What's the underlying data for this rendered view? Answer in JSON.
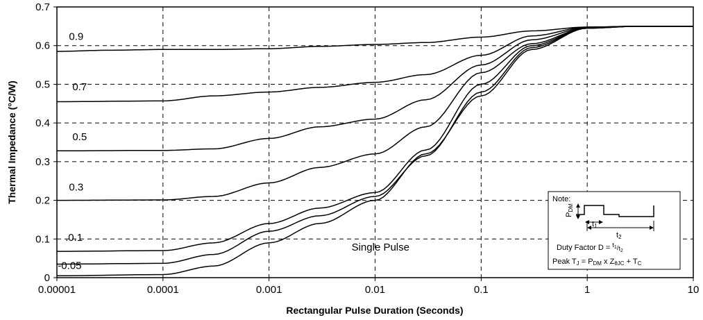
{
  "chart_data": {
    "type": "line",
    "xlabel": "Rectangular Pulse Duration (Seconds)",
    "ylabel": "Thermal Impedance (°C/W)",
    "x_scale": "log",
    "xlim": [
      1e-05,
      10
    ],
    "ylim": [
      0,
      0.7
    ],
    "x_ticks": [
      "0.00001",
      "0.0001",
      "0.001",
      "0.01",
      "0.1",
      "1",
      "10"
    ],
    "y_ticks": [
      "0",
      "0.1",
      "0.2",
      "0.3",
      "0.4",
      "0.5",
      "0.6",
      "0.7"
    ],
    "grid": true,
    "series": [
      {
        "name": "0.9",
        "points": [
          [
            1e-05,
            0.585
          ],
          [
            3e-05,
            0.588
          ],
          [
            0.0001,
            0.59
          ],
          [
            0.0003,
            0.59
          ],
          [
            0.001,
            0.592
          ],
          [
            0.003,
            0.598
          ],
          [
            0.01,
            0.603
          ],
          [
            0.03,
            0.608
          ],
          [
            0.1,
            0.622
          ],
          [
            0.3,
            0.638
          ],
          [
            1,
            0.648
          ],
          [
            3,
            0.65
          ],
          [
            10,
            0.65
          ]
        ]
      },
      {
        "name": "0.7",
        "points": [
          [
            1e-05,
            0.455
          ],
          [
            0.0001,
            0.457
          ],
          [
            0.0003,
            0.47
          ],
          [
            0.001,
            0.48
          ],
          [
            0.003,
            0.492
          ],
          [
            0.01,
            0.505
          ],
          [
            0.03,
            0.525
          ],
          [
            0.1,
            0.575
          ],
          [
            0.3,
            0.625
          ],
          [
            1,
            0.648
          ],
          [
            3,
            0.65
          ],
          [
            10,
            0.65
          ]
        ]
      },
      {
        "name": "0.5",
        "points": [
          [
            1e-05,
            0.328
          ],
          [
            0.0001,
            0.329
          ],
          [
            0.0003,
            0.333
          ],
          [
            0.001,
            0.36
          ],
          [
            0.003,
            0.39
          ],
          [
            0.01,
            0.41
          ],
          [
            0.03,
            0.46
          ],
          [
            0.1,
            0.55
          ],
          [
            0.3,
            0.615
          ],
          [
            1,
            0.647
          ],
          [
            3,
            0.65
          ],
          [
            10,
            0.65
          ]
        ]
      },
      {
        "name": "0.3",
        "points": [
          [
            1e-05,
            0.2
          ],
          [
            0.0001,
            0.201
          ],
          [
            0.0003,
            0.21
          ],
          [
            0.001,
            0.245
          ],
          [
            0.003,
            0.285
          ],
          [
            0.01,
            0.32
          ],
          [
            0.03,
            0.39
          ],
          [
            0.1,
            0.53
          ],
          [
            0.3,
            0.605
          ],
          [
            1,
            0.646
          ],
          [
            3,
            0.65
          ],
          [
            10,
            0.65
          ]
        ]
      },
      {
        "name": "0.1",
        "points": [
          [
            1e-05,
            0.068
          ],
          [
            0.0001,
            0.07
          ],
          [
            0.0003,
            0.09
          ],
          [
            0.001,
            0.14
          ],
          [
            0.003,
            0.18
          ],
          [
            0.01,
            0.22
          ],
          [
            0.03,
            0.33
          ],
          [
            0.1,
            0.5
          ],
          [
            0.3,
            0.6
          ],
          [
            1,
            0.645
          ],
          [
            3,
            0.65
          ],
          [
            10,
            0.65
          ]
        ]
      },
      {
        "name": "0.05",
        "points": [
          [
            1e-05,
            0.035
          ],
          [
            0.0001,
            0.037
          ],
          [
            0.0003,
            0.06
          ],
          [
            0.001,
            0.12
          ],
          [
            0.003,
            0.16
          ],
          [
            0.01,
            0.21
          ],
          [
            0.03,
            0.315
          ],
          [
            0.1,
            0.48
          ],
          [
            0.3,
            0.595
          ],
          [
            1,
            0.645
          ],
          [
            3,
            0.65
          ],
          [
            10,
            0.65
          ]
        ]
      },
      {
        "name": "Single Pulse",
        "points": [
          [
            1e-05,
            0.005
          ],
          [
            0.0001,
            0.008
          ],
          [
            0.0003,
            0.03
          ],
          [
            0.001,
            0.09
          ],
          [
            0.003,
            0.14
          ],
          [
            0.01,
            0.2
          ],
          [
            0.03,
            0.32
          ],
          [
            0.1,
            0.47
          ],
          [
            0.3,
            0.59
          ],
          [
            1,
            0.645
          ],
          [
            3,
            0.65
          ],
          [
            10,
            0.65
          ]
        ]
      }
    ],
    "curve_labels": [
      {
        "text": "0.9",
        "x": 1.3e-05,
        "y": 0.615
      },
      {
        "text": "0.7",
        "x": 1.4e-05,
        "y": 0.485
      },
      {
        "text": "0.5",
        "x": 1.4e-05,
        "y": 0.355
      },
      {
        "text": "0.3",
        "x": 1.3e-05,
        "y": 0.225
      },
      {
        "text": ".0.1",
        "x": 1.2e-05,
        "y": 0.095
      },
      {
        "text": "-0.05",
        "x": 1.02e-05,
        "y": 0.022
      },
      {
        "text": "Single Pulse",
        "x": 0.006,
        "y": 0.07
      }
    ],
    "note": {
      "title": "Note:",
      "pdm": "P",
      "pdm_sub": "DM",
      "t1": "t",
      "t1_sub": "1",
      "t2": "t",
      "t2_sub": "2",
      "duty_prefix": "Duty Factor  D = ",
      "peak_prefix": "Peak T",
      "peak_sub_j": "J",
      "peak_eq": " = P",
      "peak_sub_dm": "DM",
      "peak_x": " x Z",
      "peak_sub_theta": "θJC",
      "peak_plus": " + T",
      "peak_sub_c": "C"
    }
  }
}
